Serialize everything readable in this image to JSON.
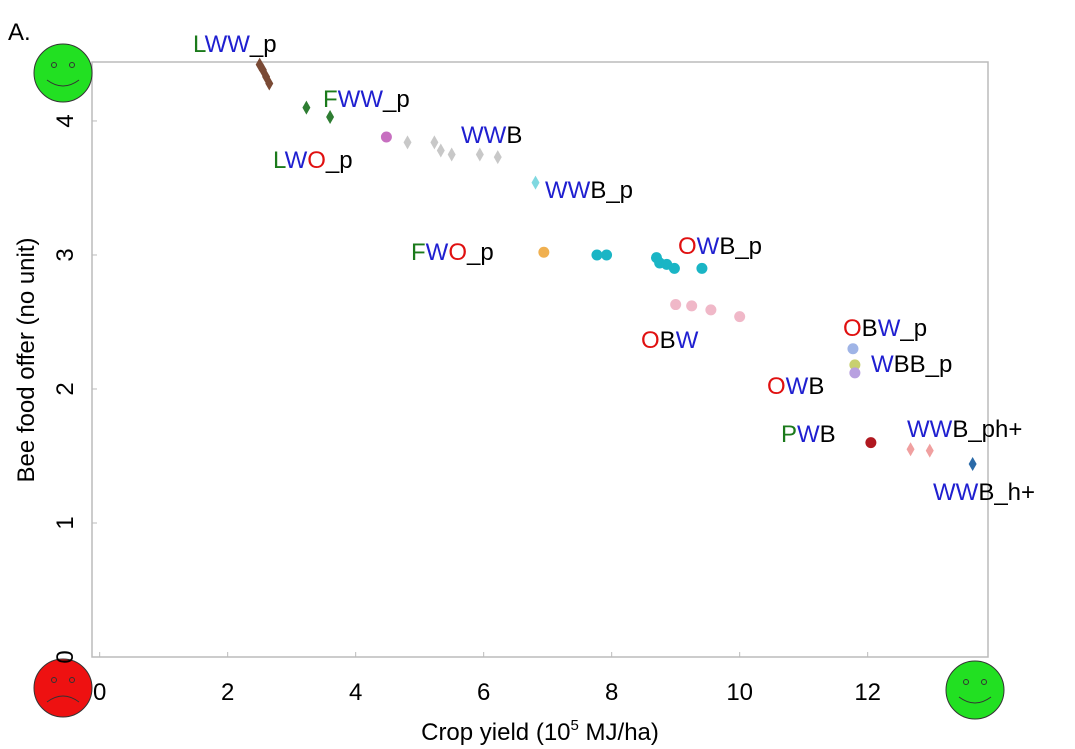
{
  "chart_data": {
    "type": "scatter",
    "panel_label": "A.",
    "x_label_parts": [
      "Crop yield (10",
      "5",
      " MJ/ha)"
    ],
    "y_label": "Bee food offer (no unit)",
    "xlim": [
      -0.12,
      13.88
    ],
    "ylim": [
      0,
      4.44
    ],
    "xticks": [
      0,
      2,
      4,
      6,
      8,
      10,
      12
    ],
    "yticks": [
      0,
      1,
      2,
      3,
      4
    ],
    "series": [
      {
        "color": "#7a4a35",
        "marker": "diamond",
        "x": [
          2.5,
          2.55,
          2.6,
          2.65
        ],
        "values": [
          4.42,
          4.38,
          4.33,
          4.28
        ]
      },
      {
        "color": "#2e7d32",
        "marker": "diamond",
        "x": [
          3.23,
          3.6
        ],
        "values": [
          4.1,
          4.03
        ]
      },
      {
        "color": "#c76fc0",
        "marker": "circle",
        "x": [
          4.48
        ],
        "values": [
          3.88
        ]
      },
      {
        "color": "#c8c8c8",
        "marker": "diamond",
        "x": [
          4.81,
          5.23,
          5.33,
          5.5,
          5.94,
          6.22
        ],
        "values": [
          3.84,
          3.84,
          3.78,
          3.75,
          3.75,
          3.73
        ]
      },
      {
        "color": "#7fd8e0",
        "marker": "diamond",
        "x": [
          6.81
        ],
        "values": [
          3.54
        ]
      },
      {
        "color": "#f0b050",
        "marker": "circle",
        "x": [
          6.94
        ],
        "values": [
          3.02
        ]
      },
      {
        "color": "#1ab5c5",
        "marker": "circle",
        "x": [
          7.77,
          7.92,
          8.7,
          8.75,
          8.86,
          8.98,
          9.41
        ],
        "values": [
          3.0,
          3.0,
          2.98,
          2.94,
          2.93,
          2.9,
          2.9
        ]
      },
      {
        "color": "#f0b8c8",
        "marker": "circle",
        "x": [
          9.0,
          9.25,
          9.55,
          10.0
        ],
        "values": [
          2.63,
          2.62,
          2.59,
          2.54
        ]
      },
      {
        "color": "#9fb4e6",
        "marker": "circle",
        "x": [
          11.77
        ],
        "values": [
          2.3
        ]
      },
      {
        "color": "#c8d070",
        "marker": "circle",
        "x": [
          11.8
        ],
        "values": [
          2.18
        ]
      },
      {
        "color": "#b8a0e0",
        "marker": "circle",
        "x": [
          11.8
        ],
        "values": [
          2.12
        ]
      },
      {
        "color": "#b01820",
        "marker": "circle",
        "x": [
          12.05
        ],
        "values": [
          1.6
        ]
      },
      {
        "color": "#f0a0a0",
        "marker": "diamond",
        "x": [
          12.67,
          12.97
        ],
        "values": [
          1.55,
          1.54
        ]
      },
      {
        "color": "#2a6aa8",
        "marker": "diamond",
        "x": [
          13.64
        ],
        "values": [
          1.44
        ]
      }
    ],
    "annotations": [
      [
        {
          "text": "L",
          "color": "#1b7a1b"
        },
        {
          "text": "WW",
          "color": "#1f1fd0"
        },
        {
          "text": "_p",
          "color": "#000000"
        }
      ],
      [
        {
          "text": "F",
          "color": "#1b7a1b"
        },
        {
          "text": "WW",
          "color": "#1f1fd0"
        },
        {
          "text": "_p",
          "color": "#000000"
        }
      ],
      [
        {
          "text": "L",
          "color": "#1b7a1b"
        },
        {
          "text": "W",
          "color": "#1f1fd0"
        },
        {
          "text": "O",
          "color": "#e01010"
        },
        {
          "text": "_p",
          "color": "#000000"
        }
      ],
      [
        {
          "text": "WW",
          "color": "#1f1fd0"
        },
        {
          "text": "B",
          "color": "#000000"
        }
      ],
      [
        {
          "text": "WW",
          "color": "#1f1fd0"
        },
        {
          "text": "B_p",
          "color": "#000000"
        }
      ],
      [
        {
          "text": "F",
          "color": "#1b7a1b"
        },
        {
          "text": "W",
          "color": "#1f1fd0"
        },
        {
          "text": "O",
          "color": "#e01010"
        },
        {
          "text": "_p",
          "color": "#000000"
        }
      ],
      [
        {
          "text": "O",
          "color": "#e01010"
        },
        {
          "text": "W",
          "color": "#1f1fd0"
        },
        {
          "text": "B_p",
          "color": "#000000"
        }
      ],
      [
        {
          "text": "O",
          "color": "#e01010"
        },
        {
          "text": "B",
          "color": "#000000"
        },
        {
          "text": "W",
          "color": "#1f1fd0"
        }
      ],
      [
        {
          "text": "O",
          "color": "#e01010"
        },
        {
          "text": "B",
          "color": "#000000"
        },
        {
          "text": "W",
          "color": "#1f1fd0"
        },
        {
          "text": "_p",
          "color": "#000000"
        }
      ],
      [
        {
          "text": "W",
          "color": "#1f1fd0"
        },
        {
          "text": "BB_p",
          "color": "#000000"
        }
      ],
      [
        {
          "text": "O",
          "color": "#e01010"
        },
        {
          "text": "W",
          "color": "#1f1fd0"
        },
        {
          "text": "B",
          "color": "#000000"
        }
      ],
      [
        {
          "text": "P",
          "color": "#1b7a1b"
        },
        {
          "text": "W",
          "color": "#1f1fd0"
        },
        {
          "text": "B",
          "color": "#000000"
        }
      ],
      [
        {
          "text": "WW",
          "color": "#1f1fd0"
        },
        {
          "text": "B_ph+",
          "color": "#000000"
        }
      ],
      [
        {
          "text": "WW",
          "color": "#1f1fd0"
        },
        {
          "text": "B_h+",
          "color": "#000000"
        }
      ]
    ]
  }
}
